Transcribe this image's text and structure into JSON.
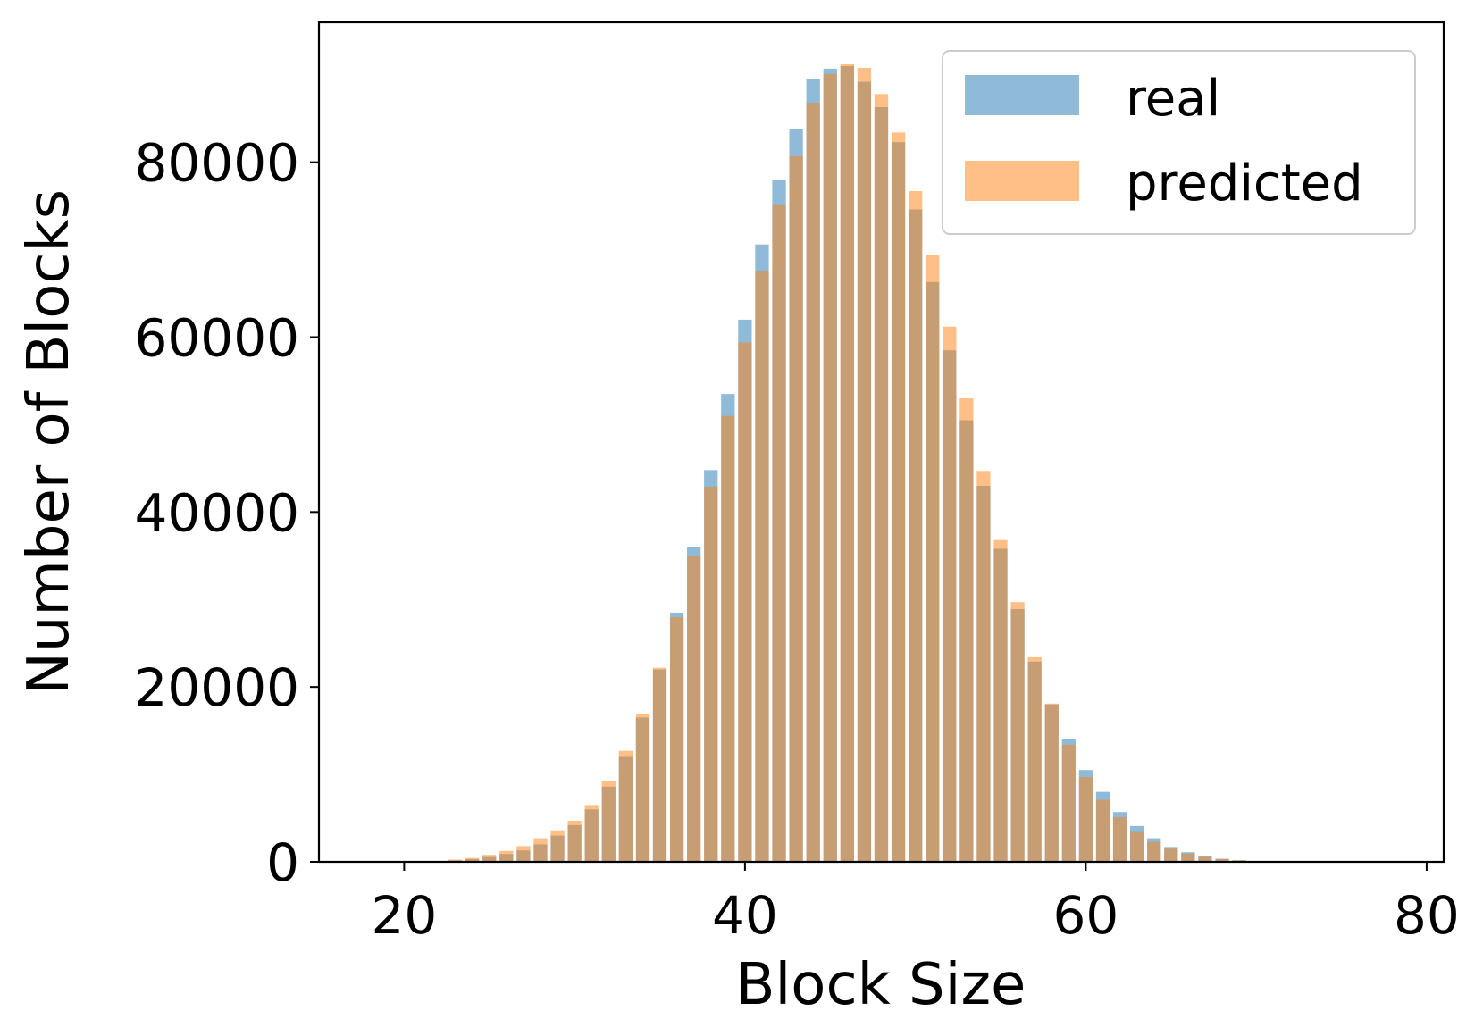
{
  "colors": {
    "real": "#1f77b4",
    "predicted": "#ff7f0e",
    "axis": "#000000",
    "legend_border": "#cccccc"
  },
  "chart_data": {
    "type": "bar",
    "xlabel": "Block Size",
    "ylabel": "Number of Blocks",
    "xlim": [
      15,
      81
    ],
    "ylim": [
      0,
      96000
    ],
    "xticks": [
      20,
      40,
      60,
      80
    ],
    "xtick_labels": [
      "20",
      "40",
      "60",
      "80"
    ],
    "yticks": [
      0,
      20000,
      40000,
      60000,
      80000
    ],
    "ytick_labels": [
      "0",
      "20000",
      "40000",
      "60000",
      "80000"
    ],
    "grid": false,
    "legend_position": "top-right",
    "bar_alpha": 0.5,
    "series": [
      {
        "name": "real",
        "x": [
          20,
          21,
          22,
          23,
          24,
          25,
          26,
          27,
          28,
          29,
          30,
          31,
          32,
          33,
          34,
          35,
          36,
          37,
          38,
          39,
          40,
          41,
          42,
          43,
          44,
          45,
          46,
          47,
          48,
          49,
          50,
          51,
          52,
          53,
          54,
          55,
          56,
          57,
          58,
          59,
          60,
          61,
          62,
          63,
          64,
          65,
          66,
          67,
          68,
          69,
          70,
          71
        ],
        "values": [
          0,
          0,
          50,
          150,
          300,
          550,
          900,
          1300,
          2000,
          3000,
          4200,
          6000,
          8600,
          12000,
          16500,
          22000,
          28500,
          36000,
          44800,
          53500,
          62000,
          70600,
          78000,
          83800,
          89500,
          90700,
          91000,
          89200,
          86300,
          82300,
          74600,
          66300,
          58500,
          50500,
          43000,
          35800,
          28900,
          22900,
          18000,
          14000,
          10500,
          8000,
          5700,
          4100,
          2700,
          1700,
          1100,
          650,
          350,
          180,
          90,
          40
        ]
      },
      {
        "name": "predicted",
        "x": [
          20,
          21,
          22,
          23,
          24,
          25,
          26,
          27,
          28,
          29,
          30,
          31,
          32,
          33,
          34,
          35,
          36,
          37,
          38,
          39,
          40,
          41,
          42,
          43,
          44,
          45,
          46,
          47,
          48,
          49,
          50,
          51,
          52,
          53,
          54,
          55,
          56,
          57,
          58,
          59,
          60,
          61,
          62,
          63,
          64,
          65,
          66,
          67,
          68,
          69,
          70,
          71
        ],
        "values": [
          0,
          0,
          80,
          250,
          450,
          800,
          1250,
          1800,
          2700,
          3600,
          4700,
          6500,
          9200,
          12700,
          16900,
          22200,
          28000,
          35000,
          42900,
          51000,
          59400,
          67600,
          75200,
          80700,
          86800,
          90100,
          91200,
          90800,
          87800,
          83400,
          76700,
          69400,
          61200,
          53000,
          44700,
          36800,
          29700,
          23400,
          18100,
          13400,
          9700,
          7100,
          5100,
          3400,
          2300,
          1500,
          950,
          570,
          330,
          170,
          80,
          30
        ]
      }
    ]
  }
}
